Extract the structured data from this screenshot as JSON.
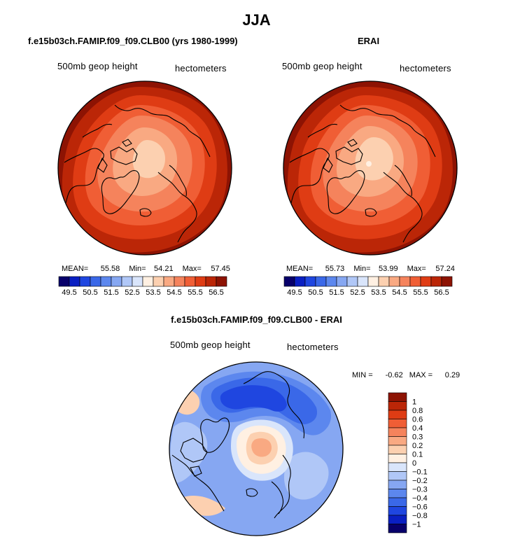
{
  "page": {
    "title": "JJA",
    "diff_title": "f.e15b03ch.FAMIP.f09_f09.CLB00 - ERAI"
  },
  "palette": {
    "diverging": [
      "#08006b",
      "#0a1fc2",
      "#1f46e0",
      "#3a68e8",
      "#5c87ee",
      "#86a7f2",
      "#b0c7f7",
      "#d9e5fb",
      "#fff0e2",
      "#fcd0b0",
      "#f9a982",
      "#f5835c",
      "#f05e35",
      "#df3c14",
      "#bb2607",
      "#8d1303"
    ]
  },
  "chart_data": [
    {
      "type": "heatmap",
      "projection": "north-polar-stereographic",
      "title": "f.e15b03ch.FAMIP.f09_f09.CLB00 (yrs 1980-1999)",
      "left_label": "500mb geop height",
      "right_label": "hectometers",
      "stats": {
        "mean_label": "MEAN=",
        "mean": "55.58",
        "min_label": "Min=",
        "min": "54.21",
        "max_label": "Max=",
        "max": "57.45"
      },
      "colorbar": {
        "orientation": "horizontal",
        "levels": [
          "49.5",
          "50.5",
          "51.5",
          "52.5",
          "53.5",
          "54.5",
          "55.5",
          "56.5"
        ],
        "contour_levels": [
          49.5,
          50,
          50.5,
          51,
          51.5,
          52,
          52.5,
          53,
          53.5,
          54,
          54.5,
          55,
          55.5,
          56,
          56.5
        ]
      }
    },
    {
      "type": "heatmap",
      "projection": "north-polar-stereographic",
      "title": "ERAI",
      "left_label": "500mb geop height",
      "right_label": "hectometers",
      "stats": {
        "mean_label": "MEAN=",
        "mean": "55.73",
        "min_label": "Min=",
        "min": "53.99",
        "max_label": "Max=",
        "max": "57.24"
      },
      "colorbar": {
        "orientation": "horizontal",
        "levels": [
          "49.5",
          "50.5",
          "51.5",
          "52.5",
          "53.5",
          "54.5",
          "55.5",
          "56.5"
        ],
        "contour_levels": [
          49.5,
          50,
          50.5,
          51,
          51.5,
          52,
          52.5,
          53,
          53.5,
          54,
          54.5,
          55,
          55.5,
          56,
          56.5
        ]
      }
    },
    {
      "type": "heatmap",
      "projection": "north-polar-stereographic",
      "title": "f.e15b03ch.FAMIP.f09_f09.CLB00 - ERAI",
      "left_label": "500mb geop height",
      "right_label": "hectometers",
      "stats": {
        "min_label": "MIN =",
        "min": "-0.62",
        "max_label": "MAX =",
        "max": "0.29"
      },
      "colorbar": {
        "orientation": "vertical",
        "levels": [
          "1",
          "0.8",
          "0.6",
          "0.4",
          "0.3",
          "0.2",
          "0.1",
          "0",
          "−0.1",
          "−0.2",
          "−0.3",
          "−0.4",
          "−0.6",
          "−0.8",
          "−1"
        ],
        "contour_levels": [
          -1,
          -0.8,
          -0.6,
          -0.4,
          -0.3,
          -0.2,
          -0.1,
          0,
          0.1,
          0.2,
          0.3,
          0.4,
          0.6,
          0.8,
          1
        ]
      }
    }
  ]
}
